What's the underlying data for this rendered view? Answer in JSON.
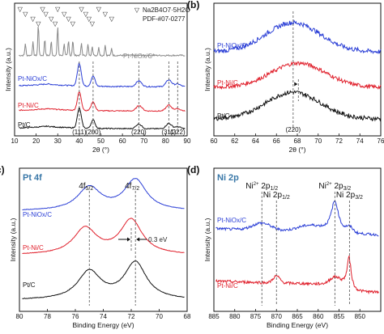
{
  "colors": {
    "pt_nio": "#2b3fd6",
    "pt_ni": "#e0202c",
    "pt_c": "#111111",
    "ref": "#888888"
  },
  "chart_data": [
    {
      "id": "a",
      "type": "line",
      "panel_label": "(a)",
      "xlabel": "2θ (°)",
      "ylabel": "Intensity (a.u.)",
      "xlim": [
        10,
        90
      ],
      "xticks": [
        "10",
        "20",
        "30",
        "40",
        "50",
        "60",
        "70",
        "80",
        "90"
      ],
      "legend_marker": "▽",
      "legend_lines": [
        "Na2B4O7·5H2O",
        "PDF-#07-0277"
      ],
      "series": [
        {
          "name": "Pt-NiOx/C*",
          "color": "#888888",
          "peaks": [
            [
              15,
              0.5
            ],
            [
              18.5,
              0.55
            ],
            [
              21,
              1.3
            ],
            [
              24,
              0.7
            ],
            [
              27,
              0.6
            ],
            [
              30,
              1.2
            ],
            [
              33,
              0.5
            ],
            [
              35,
              0.6
            ],
            [
              37,
              0.65
            ],
            [
              41,
              0.5
            ],
            [
              44,
              0.45
            ],
            [
              46,
              0.4
            ],
            [
              49,
              0.35
            ],
            [
              52,
              0.45
            ],
            [
              55,
              0.3
            ]
          ]
        },
        {
          "name": "Pt-NiOx/C",
          "color": "#2b3fd6",
          "peaks": [
            [
              40,
              1.0
            ],
            [
              46.4,
              0.45
            ],
            [
              67.6,
              0.25
            ],
            [
              81.5,
              0.3
            ],
            [
              85.6,
              0.12
            ]
          ]
        },
        {
          "name": "Pt-Ni/C",
          "color": "#e0202c",
          "peaks": [
            [
              40,
              0.95
            ],
            [
              46.4,
              0.45
            ],
            [
              67.8,
              0.28
            ],
            [
              81.5,
              0.3
            ],
            [
              85.6,
              0.12
            ]
          ]
        },
        {
          "name": "Pt/C",
          "color": "#111111",
          "peaks": [
            [
              40,
              0.95
            ],
            [
              46.4,
              0.4
            ],
            [
              67.6,
              0.22
            ],
            [
              81.5,
              0.25
            ],
            [
              85.6,
              0.1
            ]
          ]
        }
      ],
      "reflections": [
        {
          "label": "(111)",
          "x": 40
        },
        {
          "label": "(200)",
          "x": 46.4
        },
        {
          "label": "(220)",
          "x": 67.6
        },
        {
          "label": "(311)",
          "x": 81.5
        },
        {
          "label": "(222)",
          "x": 85.6
        }
      ],
      "ref_peaks": [
        12.5,
        15,
        18.5,
        21,
        23,
        24.5,
        27,
        28.8,
        30,
        33,
        35,
        37,
        41,
        43,
        44.5,
        46,
        49,
        52,
        55
      ]
    },
    {
      "id": "b",
      "type": "line",
      "panel_label": "(b)",
      "xlabel": "2θ (°)",
      "ylabel": "Intensity (a.u.)",
      "xlim": [
        60,
        76
      ],
      "xticks": [
        "60",
        "62",
        "64",
        "66",
        "68",
        "70",
        "72",
        "74",
        "76"
      ],
      "series": [
        {
          "name": "Pt-NiOx/C",
          "color": "#2b3fd6",
          "center": 67.6
        },
        {
          "name": "Pt-Ni/C",
          "color": "#e0202c",
          "center": 68.1
        },
        {
          "name": "Pt/C",
          "color": "#111111",
          "center": 67.6
        }
      ],
      "reflection_label": "(220)"
    },
    {
      "id": "c",
      "type": "line",
      "panel_label": "(c)",
      "corner_label": "Pt 4f",
      "xlabel": "Binding Energy (eV)",
      "ylabel": "Intensity (a.u.)",
      "xlim": [
        80,
        68
      ],
      "xticks": [
        "80",
        "78",
        "76",
        "74",
        "72",
        "70",
        "68"
      ],
      "series": [
        {
          "name": "Pt-NiOx/C",
          "color": "#2b3fd6",
          "peaks": [
            75.0,
            71.7
          ]
        },
        {
          "name": "Pt-Ni/C",
          "color": "#e0202c",
          "peaks": [
            75.3,
            72.0
          ]
        },
        {
          "name": "Pt/C",
          "color": "#111111",
          "peaks": [
            75.0,
            71.7
          ]
        }
      ],
      "peak_labels": [
        {
          "main": "4f",
          "sub": "5/2",
          "x": 75.0
        },
        {
          "main": "4f",
          "sub": "7/2",
          "x": 71.7
        }
      ],
      "shift_label": "0.3 eV"
    },
    {
      "id": "d",
      "type": "line",
      "panel_label": "(d)",
      "corner_label": "Ni 2p",
      "xlabel": "Binding Energy (eV)",
      "ylabel": "Intensity (a.u.)",
      "xlim": [
        885,
        845
      ],
      "xticks": [
        "885",
        "880",
        "875",
        "870",
        "865",
        "860",
        "855",
        "850",
        "845"
      ],
      "series": [
        {
          "name": "Pt-NiOx/C",
          "color": "#2b3fd6"
        },
        {
          "name": "Pt-Ni/C",
          "color": "#e0202c"
        }
      ],
      "peak_labels": [
        {
          "main": "Ni",
          "sup": "2+",
          "orb": " 2p",
          "sub": "1/2",
          "x": 873.5
        },
        {
          "main": "Ni",
          "orb": " 2p",
          "sub": "1/2",
          "x": 870
        },
        {
          "main": "Ni",
          "sup": "2+",
          "orb": " 2p",
          "sub": "3/2",
          "x": 856
        },
        {
          "main": "Ni",
          "orb": " 2p",
          "sub": "3/2",
          "x": 852.5
        }
      ]
    }
  ]
}
